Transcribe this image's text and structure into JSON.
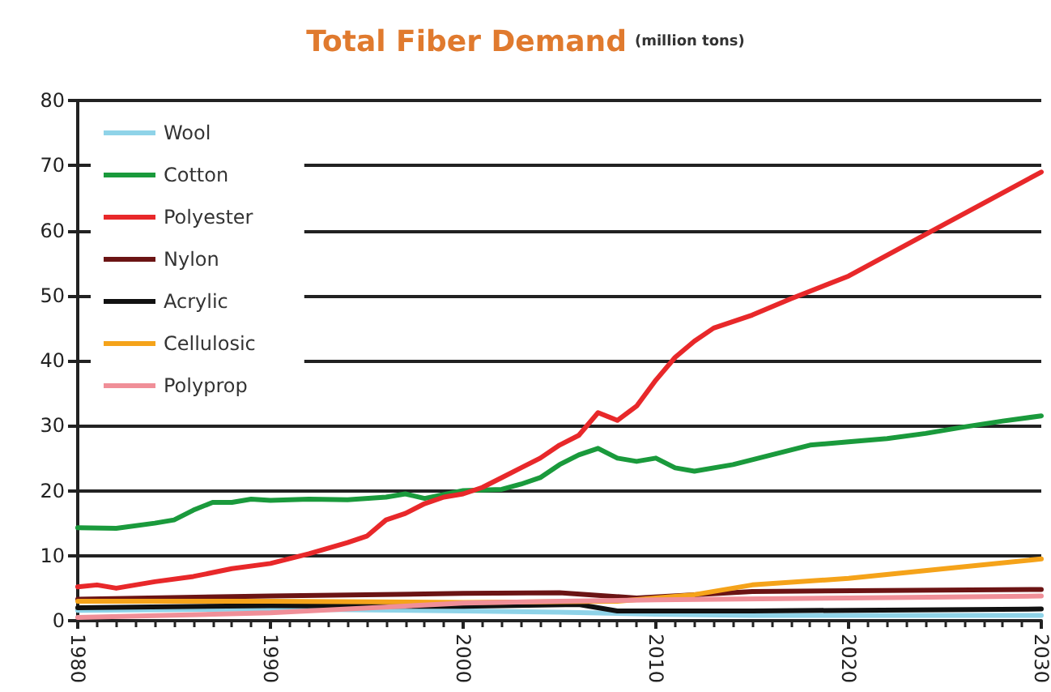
{
  "chart_data": {
    "type": "line",
    "title": "Total Fiber Demand",
    "subtitle": "(million tons)",
    "xlim": [
      1980,
      2030
    ],
    "xticks": [
      1980,
      1990,
      2000,
      2010,
      2020,
      2030
    ],
    "ylim": [
      0,
      80
    ],
    "yticks": [
      0,
      10,
      20,
      30,
      40,
      50,
      60,
      70,
      80
    ],
    "grid": "y",
    "legend": "top left",
    "marker": "none",
    "line_style": "solid",
    "series": [
      {
        "name": "Wool",
        "color": "#8fd3e8",
        "x": [
          1980,
          1990,
          2000,
          2005,
          2010,
          2015,
          2030
        ],
        "values": [
          1.6,
          1.8,
          1.5,
          1.3,
          1.0,
          0.8,
          0.8
        ]
      },
      {
        "name": "Cotton",
        "color": "#1a9a3c",
        "x": [
          1980,
          1982,
          1984,
          1985,
          1986,
          1987,
          1988,
          1989,
          1990,
          1992,
          1994,
          1996,
          1997,
          1998,
          2000,
          2002,
          2003,
          2004,
          2005,
          2006,
          2007,
          2008,
          2009,
          2010,
          2011,
          2012,
          2014,
          2016,
          2018,
          2020,
          2022,
          2024,
          2026,
          2028,
          2030
        ],
        "values": [
          14.3,
          14.2,
          15,
          15.5,
          17,
          18.2,
          18.2,
          18.7,
          18.5,
          18.7,
          18.6,
          19,
          19.5,
          18.8,
          20,
          20.2,
          21,
          22,
          24,
          25.5,
          26.5,
          25,
          24.5,
          25,
          23.5,
          23,
          24,
          25.5,
          27,
          27.5,
          28,
          28.8,
          29.8,
          30.7,
          31.5
        ]
      },
      {
        "name": "Polyester",
        "color": "#e8282a",
        "x": [
          1980,
          1981,
          1982,
          1984,
          1986,
          1988,
          1990,
          1992,
          1994,
          1995,
          1996,
          1997,
          1998,
          1999,
          2000,
          2001,
          2002,
          2003,
          2004,
          2005,
          2006,
          2007,
          2008,
          2009,
          2010,
          2011,
          2012,
          2013,
          2015,
          2017,
          2020,
          2025,
          2030
        ],
        "values": [
          5.2,
          5.5,
          5,
          6,
          6.8,
          8,
          8.8,
          10.3,
          12,
          13,
          15.5,
          16.5,
          18,
          19,
          19.5,
          20.5,
          22,
          23.5,
          25,
          27,
          28.5,
          32,
          30.8,
          33,
          37,
          40.5,
          43,
          45,
          47,
          49.5,
          53,
          61,
          69
        ]
      },
      {
        "name": "Nylon",
        "color": "#6b1414",
        "x": [
          1980,
          1990,
          2000,
          2005,
          2009,
          2015,
          2030
        ],
        "values": [
          3.3,
          3.8,
          4.2,
          4.3,
          3.5,
          4.5,
          4.8
        ]
      },
      {
        "name": "Acrylic",
        "color": "#111111",
        "x": [
          1980,
          1990,
          2000,
          2006,
          2008,
          2015,
          2030
        ],
        "values": [
          2,
          2.3,
          2.2,
          2.5,
          1.5,
          1.5,
          1.8
        ]
      },
      {
        "name": "Cellulosic",
        "color": "#f5a31a",
        "x": [
          1980,
          1990,
          2000,
          2008,
          2012,
          2015,
          2020,
          2025,
          2030
        ],
        "values": [
          3,
          3,
          2.8,
          3,
          4,
          5.5,
          6.5,
          8,
          9.5
        ]
      },
      {
        "name": "Polyprop",
        "color": "#f08f98",
        "x": [
          1980,
          1990,
          2000,
          2005,
          2010,
          2020,
          2030
        ],
        "values": [
          0.5,
          1.2,
          2.7,
          3,
          3.2,
          3.5,
          3.8
        ]
      }
    ]
  }
}
